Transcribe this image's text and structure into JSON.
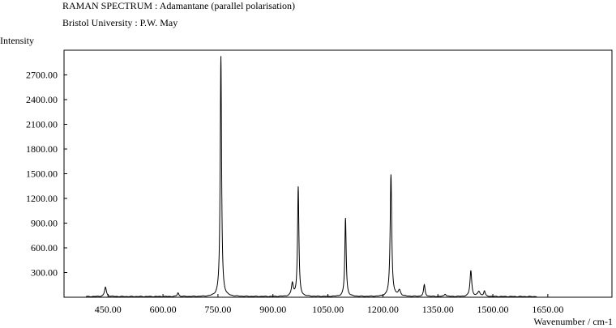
{
  "header": {
    "line1": "RAMAN SPECTRUM : Adamantane (parallel polarisation)",
    "line2": "Bristol University : P.W. May"
  },
  "chart_data": {
    "type": "line",
    "title": "RAMAN SPECTRUM : Adamantane (parallel polarisation)",
    "subtitle": "Bristol University : P.W. May",
    "xlabel": "Wavenumber / cm-1",
    "ylabel": "Intensity",
    "xlim": [
      330,
      1825
    ],
    "ylim": [
      0,
      3000
    ],
    "xticks": [
      450,
      600,
      750,
      900,
      1050,
      1200,
      1350,
      1500,
      1650
    ],
    "xtick_labels": [
      "450.00",
      "600.00",
      "750.00",
      "900.00",
      "1050.00",
      "1200.00",
      "1350.00",
      "1500.00",
      "1650.00"
    ],
    "yticks": [
      300,
      600,
      900,
      1200,
      1500,
      1800,
      2100,
      2400,
      2700
    ],
    "ytick_labels": [
      "300.00",
      "600.00",
      "900.00",
      "1200.00",
      "1500.00",
      "1800.00",
      "2100.00",
      "2400.00",
      "2700.00"
    ],
    "grid": false,
    "legend": "none",
    "peaks": [
      {
        "x": 443,
        "y": 115,
        "w": 3
      },
      {
        "x": 641,
        "y": 45,
        "w": 2.5
      },
      {
        "x": 758,
        "y": 2920,
        "w": 2.2
      },
      {
        "x": 953,
        "y": 155,
        "w": 3
      },
      {
        "x": 969,
        "y": 1330,
        "w": 2.2
      },
      {
        "x": 1098,
        "y": 955,
        "w": 2.2
      },
      {
        "x": 1222,
        "y": 1480,
        "w": 2.5
      },
      {
        "x": 1245,
        "y": 70,
        "w": 4
      },
      {
        "x": 1313,
        "y": 140,
        "w": 2.5
      },
      {
        "x": 1370,
        "y": 30,
        "w": 3
      },
      {
        "x": 1440,
        "y": 315,
        "w": 2.8
      },
      {
        "x": 1462,
        "y": 60,
        "w": 4
      },
      {
        "x": 1477,
        "y": 65,
        "w": 2.5
      }
    ],
    "baseline": 8
  }
}
